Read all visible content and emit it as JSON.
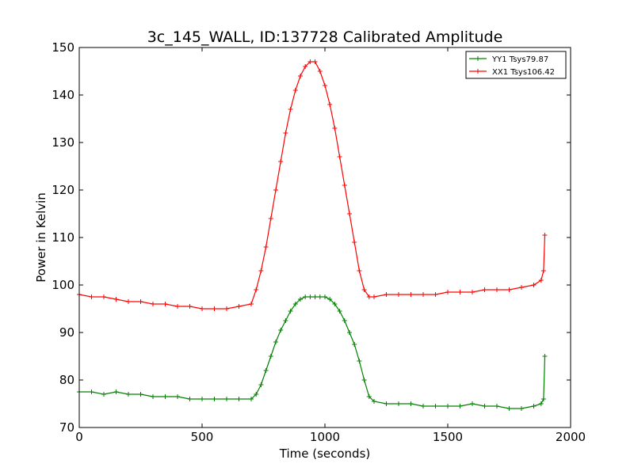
{
  "chart_data": {
    "type": "line",
    "title": "3c_145_WALL, ID:137728 Calibrated Amplitude",
    "xlabel": "Time (seconds)",
    "ylabel": "Power in Kelvin",
    "xlim": [
      0,
      2000
    ],
    "ylim": [
      70,
      150
    ],
    "xticks": [
      0,
      500,
      1000,
      1500,
      2000
    ],
    "yticks": [
      70,
      80,
      90,
      100,
      110,
      120,
      130,
      140,
      150
    ],
    "grid": false,
    "legend_position": "top-right",
    "series": [
      {
        "name": "YY1 Tsys79.87",
        "color": "#008000",
        "marker": "+",
        "x": [
          0,
          50,
          100,
          150,
          200,
          250,
          300,
          350,
          400,
          450,
          500,
          550,
          600,
          650,
          700,
          720,
          740,
          760,
          780,
          800,
          820,
          840,
          860,
          880,
          900,
          920,
          940,
          960,
          980,
          1000,
          1020,
          1040,
          1060,
          1080,
          1100,
          1120,
          1140,
          1160,
          1180,
          1200,
          1250,
          1300,
          1350,
          1400,
          1450,
          1500,
          1550,
          1600,
          1650,
          1700,
          1750,
          1800,
          1850,
          1880,
          1890,
          1895
        ],
        "y": [
          77.5,
          77.5,
          77.0,
          77.5,
          77.0,
          77.0,
          76.5,
          76.5,
          76.5,
          76.0,
          76.0,
          76.0,
          76.0,
          76.0,
          76.0,
          77.0,
          79.0,
          82.0,
          85.0,
          88.0,
          90.5,
          92.5,
          94.5,
          96.0,
          97.0,
          97.5,
          97.5,
          97.5,
          97.5,
          97.5,
          97.0,
          96.0,
          94.5,
          92.5,
          90.0,
          87.5,
          84.0,
          80.0,
          76.5,
          75.5,
          75.0,
          75.0,
          75.0,
          74.5,
          74.5,
          74.5,
          74.5,
          75.0,
          74.5,
          74.5,
          74.0,
          74.0,
          74.5,
          75.0,
          76.0,
          85.0
        ]
      },
      {
        "name": "XX1 Tsys106.42",
        "color": "#ff0000",
        "marker": "+",
        "x": [
          0,
          50,
          100,
          150,
          200,
          250,
          300,
          350,
          400,
          450,
          500,
          550,
          600,
          650,
          700,
          720,
          740,
          760,
          780,
          800,
          820,
          840,
          860,
          880,
          900,
          920,
          940,
          960,
          980,
          1000,
          1020,
          1040,
          1060,
          1080,
          1100,
          1120,
          1140,
          1160,
          1180,
          1200,
          1250,
          1300,
          1350,
          1400,
          1450,
          1500,
          1550,
          1600,
          1650,
          1700,
          1750,
          1800,
          1850,
          1880,
          1890,
          1895
        ],
        "y": [
          98.0,
          97.5,
          97.5,
          97.0,
          96.5,
          96.5,
          96.0,
          96.0,
          95.5,
          95.5,
          95.0,
          95.0,
          95.0,
          95.5,
          96.0,
          99.0,
          103.0,
          108.0,
          114.0,
          120.0,
          126.0,
          132.0,
          137.0,
          141.0,
          144.0,
          146.0,
          147.0,
          147.0,
          145.0,
          142.0,
          138.0,
          133.0,
          127.0,
          121.0,
          115.0,
          109.0,
          103.0,
          99.0,
          97.5,
          97.5,
          98.0,
          98.0,
          98.0,
          98.0,
          98.0,
          98.5,
          98.5,
          98.5,
          99.0,
          99.0,
          99.0,
          99.5,
          100.0,
          101.0,
          103.0,
          110.5
        ]
      }
    ]
  }
}
